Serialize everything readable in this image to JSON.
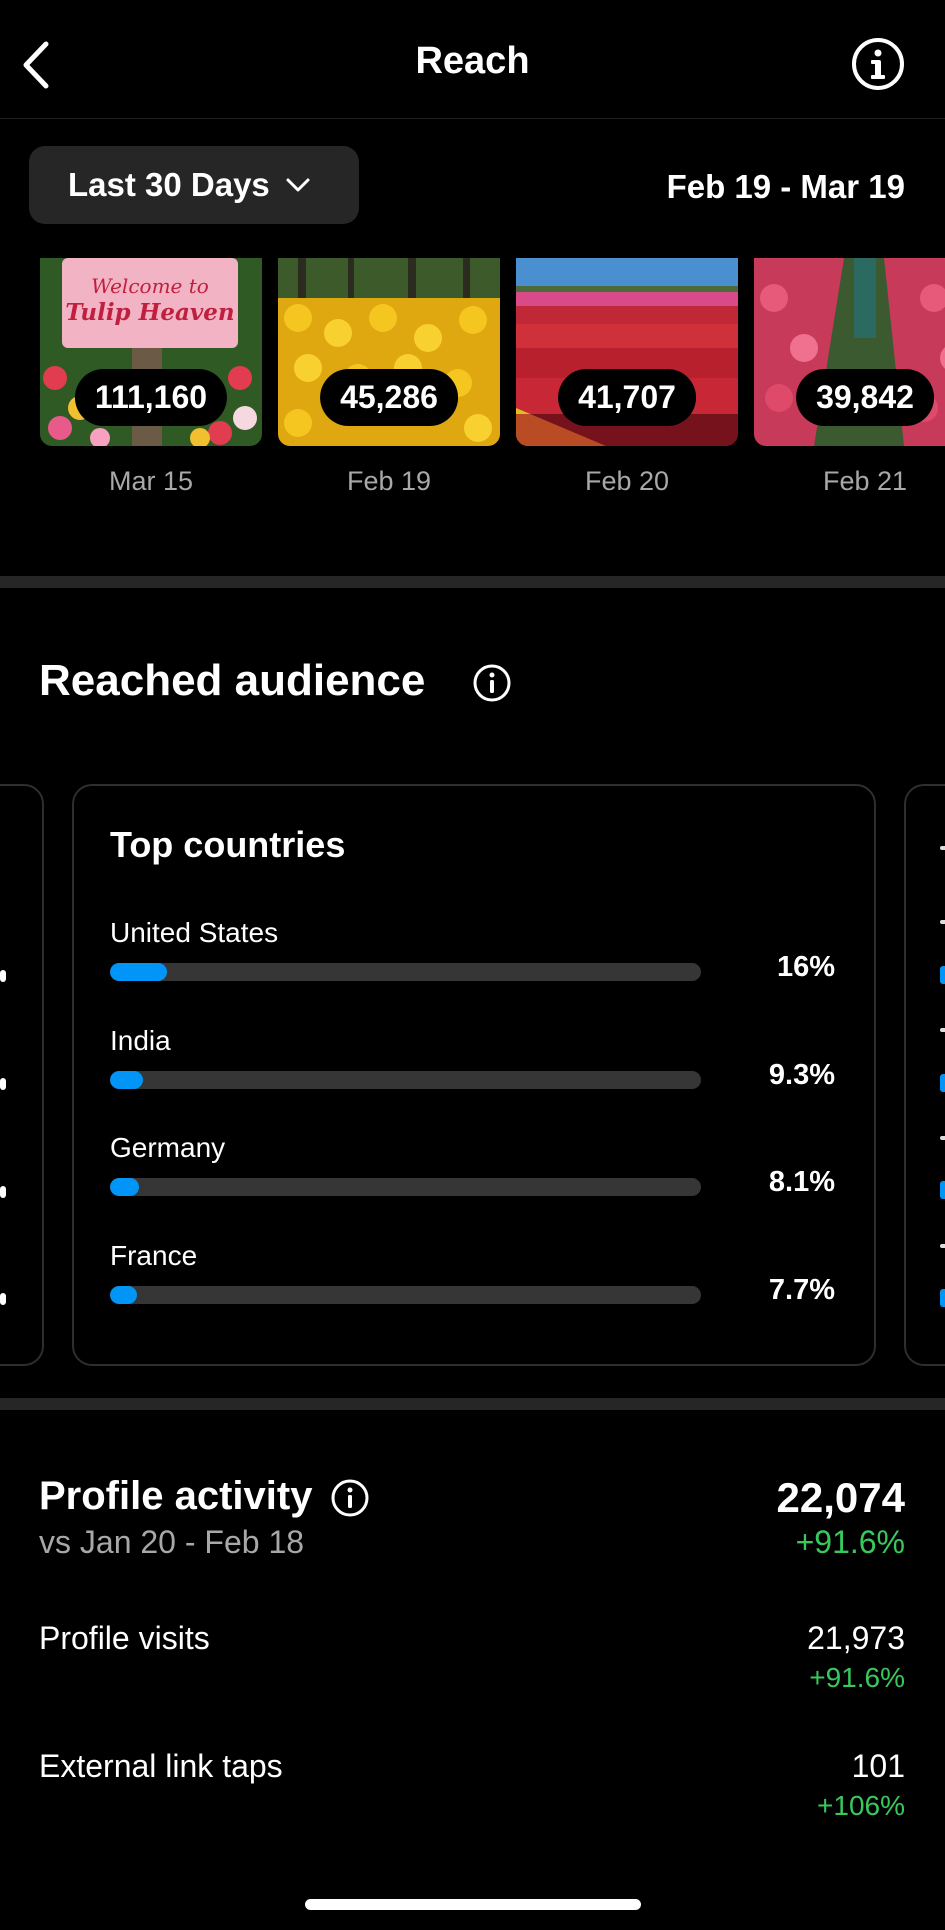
{
  "header": {
    "title": "Reach"
  },
  "filter": {
    "range_label": "Last 30 Days",
    "date_range": "Feb 19 - Mar 19"
  },
  "thumbnails": [
    {
      "value": "111,160",
      "date": "Mar 15",
      "sign_text_1": "Welcome to",
      "sign_text_2": "Tulip Heaven"
    },
    {
      "value": "45,286",
      "date": "Feb 19"
    },
    {
      "value": "41,707",
      "date": "Feb 20"
    },
    {
      "value": "39,842",
      "date": "Feb 21"
    }
  ],
  "reached_audience": {
    "title": "Reached audience",
    "top_countries": {
      "title": "Top countries",
      "items": [
        {
          "name": "United States",
          "percent_label": "16%",
          "value": 0.16
        },
        {
          "name": "India",
          "percent_label": "9.3%",
          "value": 0.093
        },
        {
          "name": "Germany",
          "percent_label": "8.1%",
          "value": 0.081
        },
        {
          "name": "France",
          "percent_label": "7.7%",
          "value": 0.077
        }
      ]
    }
  },
  "profile_activity": {
    "title": "Profile activity",
    "compare": "vs Jan 20 - Feb 18",
    "total": "22,074",
    "change": "+91.6%",
    "rows": [
      {
        "label": "Profile visits",
        "value": "21,973",
        "change": "+91.6%"
      },
      {
        "label": "External link taps",
        "value": "101",
        "change": "+106%"
      }
    ]
  },
  "colors": {
    "accent_blue": "#0095f6",
    "positive_green": "#37c95c",
    "surface": "#262626"
  }
}
